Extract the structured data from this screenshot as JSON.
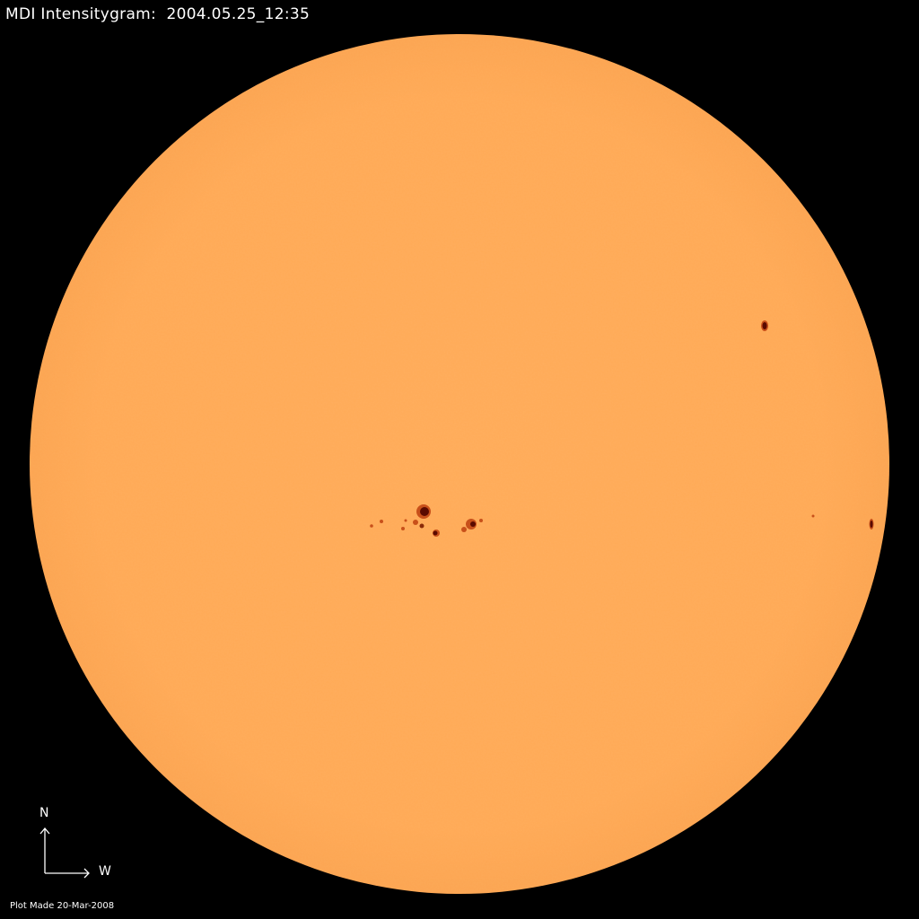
{
  "title": "MDI Intensitygram:  2004.05.25_12:35",
  "plot_made": "Plot Made 20-Mar-2008",
  "compass": {
    "north": "N",
    "west": "W"
  },
  "colors": {
    "background": "#000000",
    "disk": "#FFAA55",
    "sunspot_umbra": "#5a0a00",
    "sunspot_penumbra": "#c8501a",
    "text": "#ffffff"
  }
}
